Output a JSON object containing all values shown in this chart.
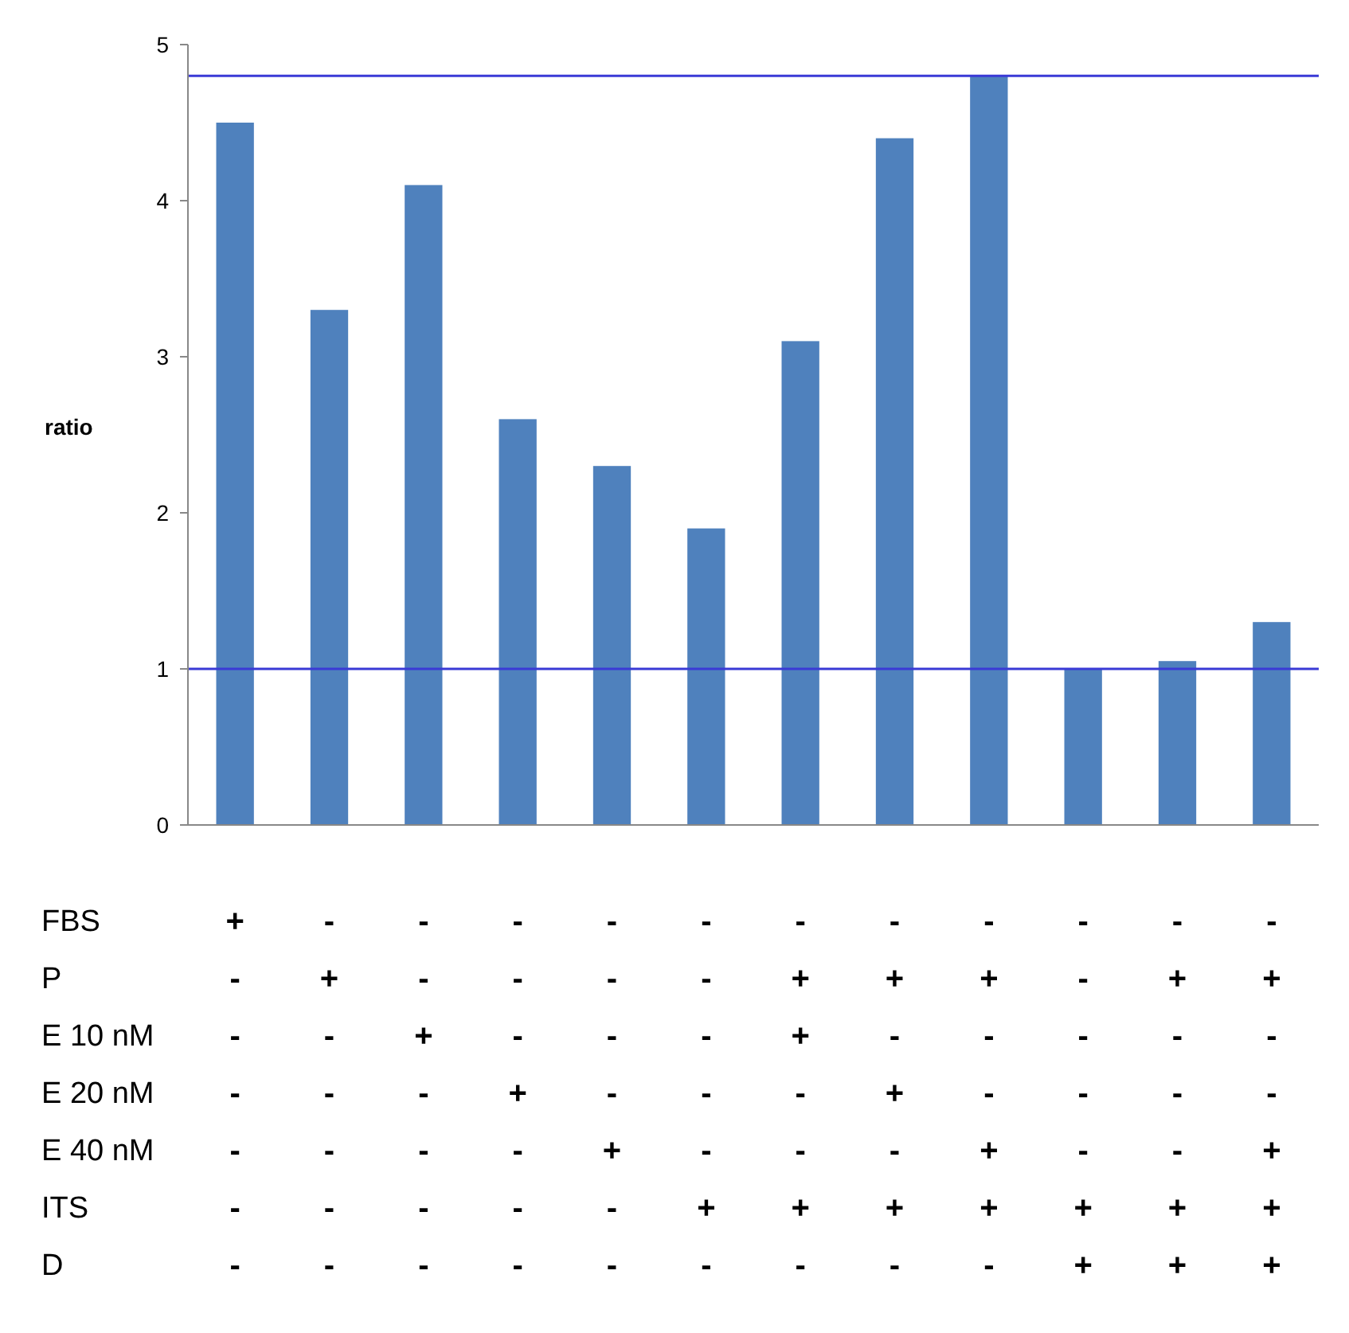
{
  "chart_data": {
    "type": "bar",
    "ylabel": "ratio",
    "categories": [
      "+\n-\n-\n-\n-\n-\n-",
      "-\n+\n-\n-\n-\n-\n-",
      "-\n-\n+\n-\n-\n-\n-",
      "-\n-\n-\n+\n-\n-\n-",
      "-\n-\n-\n-\n+\n-\n-",
      "-\n-\n-\n-\n-\n+\n-",
      "-\n+\n+\n-\n-\n+\n-",
      "-\n+\n-\n+\n-\n+\n-",
      "-\n+\n-\n-\n+\n+\n-",
      "-\n-\n-\n-\n-\n+\n+",
      "-\n+\n-\n-\n-\n+\n+",
      "-\n+\n-\n-\n+\n+\n+"
    ],
    "values": [
      4.5,
      3.3,
      4.1,
      2.6,
      2.3,
      1.9,
      3.1,
      4.4,
      4.8,
      1.0,
      1.05,
      1.3
    ],
    "color": "#4f81bd",
    "ylim": [
      0,
      5
    ],
    "yticks": [
      0,
      1,
      2,
      3,
      4,
      5
    ],
    "ref_lines": [
      {
        "axis": "y",
        "value": 4.8,
        "color": "#3a3ad6"
      },
      {
        "axis": "y",
        "value": 1,
        "color": "#3a3ad6"
      }
    ],
    "annotations": [
      "FBS",
      "P",
      "E 10 nM",
      "E 20 nM",
      "E 40 nM",
      "ITS",
      "D"
    ]
  }
}
